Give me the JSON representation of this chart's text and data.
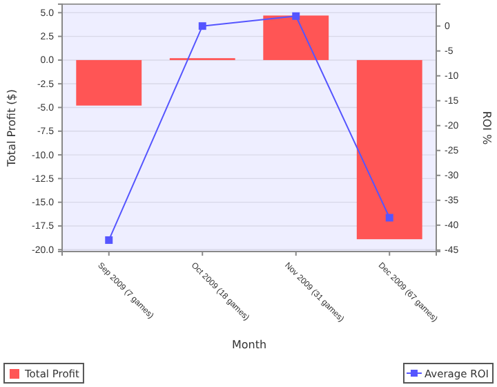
{
  "chart_data": {
    "type": "bar",
    "xlabel": "Month",
    "ylabel": "Total Profit ($)",
    "y2label": "ROI %",
    "categories": [
      "Sep 2009 (7 games)",
      "Oct 2009 (18 games)",
      "Nov 2009 (31 games)",
      "Dec 2009 (67 games)"
    ],
    "series": [
      {
        "name": "Total Profit",
        "color": "#ff5555",
        "values": [
          -4.8,
          0.2,
          4.7,
          -18.9
        ]
      },
      {
        "name": "Average ROI",
        "type": "line",
        "axis": "y2",
        "color": "#5555ff",
        "marker": "square",
        "values": [
          -43,
          0,
          2,
          -38.5
        ]
      }
    ],
    "ylim": [
      -20.2,
      5.9
    ],
    "yticks": [
      {
        "value": 5,
        "label": "5.0"
      },
      {
        "value": 2.5,
        "label": "2.5"
      },
      {
        "value": 0,
        "label": "0.0"
      },
      {
        "value": -2.5,
        "label": "-2.5"
      },
      {
        "value": -5,
        "label": "-5.0"
      },
      {
        "value": -7.5,
        "label": "-7.5"
      },
      {
        "value": -10,
        "label": "-10.0"
      },
      {
        "value": -12.5,
        "label": "-12.5"
      },
      {
        "value": -15,
        "label": "-15.0"
      },
      {
        "value": -17.5,
        "label": "-17.5"
      },
      {
        "value": -20,
        "label": "-20.0"
      }
    ],
    "y2lim": [
      -45.3,
      4.4
    ],
    "y2ticks": [
      0,
      -5,
      -10,
      -15,
      -20,
      -25,
      -30,
      -35,
      -40,
      -45
    ],
    "grid": "y",
    "legend": "bottom"
  }
}
